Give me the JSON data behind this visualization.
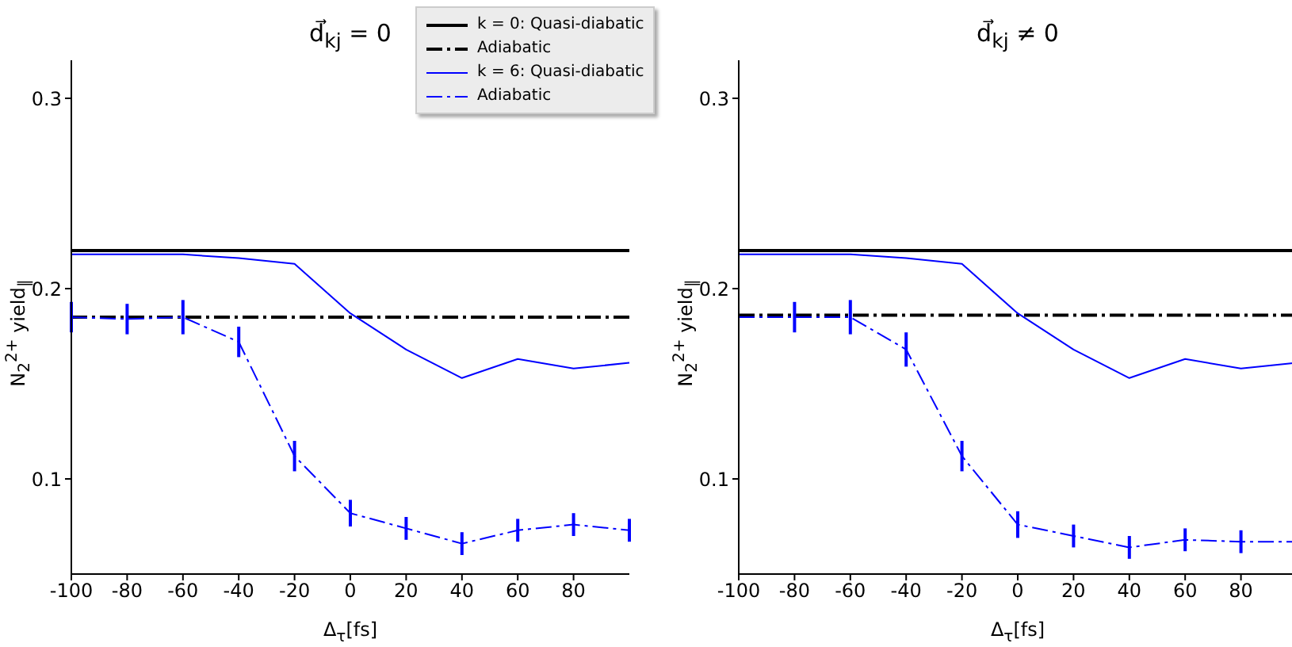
{
  "chart_data": [
    {
      "type": "line",
      "title": "d⃗$_{kj}$ = 0",
      "xlabel": "Δ$_{τ}$[fs]",
      "ylabel": "N$_{2}$$^{2+}$ yield$_{∥}$",
      "x": [
        -100,
        -80,
        -60,
        -40,
        -20,
        0,
        20,
        40,
        60,
        80,
        100
      ],
      "xlim": [
        -100,
        100
      ],
      "xticks": [
        -100,
        -80,
        -60,
        -40,
        -20,
        0,
        20,
        40,
        60,
        80
      ],
      "ylim": [
        0.05,
        0.32
      ],
      "yticks": [
        0.1,
        0.2,
        0.3
      ],
      "legend": "top right",
      "series": [
        {
          "name": "k = 0: Quasi-diabatic",
          "color": "#000000",
          "line_style": "solid",
          "values": [
            0.22,
            0.22,
            0.22,
            0.22,
            0.22,
            0.22,
            0.22,
            0.22,
            0.22,
            0.22,
            0.22
          ]
        },
        {
          "name": "Adiabatic",
          "color": "#000000",
          "line_style": "dashed",
          "values": [
            0.185,
            0.185,
            0.185,
            0.185,
            0.185,
            0.185,
            0.185,
            0.185,
            0.185,
            0.185,
            0.185
          ]
        },
        {
          "name": "k = 6: Quasi-diabatic",
          "color": "#0000ff",
          "line_style": "solid",
          "values": [
            0.218,
            0.218,
            0.218,
            0.216,
            0.213,
            0.187,
            0.168,
            0.153,
            0.163,
            0.158,
            0.161
          ]
        },
        {
          "name": "Adiabatic",
          "color": "#0000ff",
          "line_style": "dashed",
          "values": [
            0.185,
            0.184,
            0.185,
            0.172,
            0.112,
            0.082,
            0.074,
            0.066,
            0.073,
            0.076,
            0.073
          ],
          "errors": [
            0.008,
            0.008,
            0.009,
            0.008,
            0.008,
            0.007,
            0.006,
            0.006,
            0.006,
            0.006,
            0.006
          ]
        }
      ]
    },
    {
      "type": "line",
      "title": "d⃗$_{kj}$ ≠ 0",
      "xlabel": "Δ$_{τ}$[fs]",
      "ylabel": "N$_{2}$$^{2+}$ yield$_{∥}$",
      "x": [
        -100,
        -80,
        -60,
        -40,
        -20,
        0,
        20,
        40,
        60,
        80,
        100
      ],
      "xlim": [
        -100,
        100
      ],
      "xticks": [
        -100,
        -80,
        -60,
        -40,
        -20,
        0,
        20,
        40,
        60,
        80
      ],
      "ylim": [
        0.05,
        0.32
      ],
      "yticks": [
        0.1,
        0.2,
        0.3
      ],
      "series": [
        {
          "color": "#000000",
          "line_style": "solid",
          "values": [
            0.22,
            0.22,
            0.22,
            0.22,
            0.22,
            0.22,
            0.22,
            0.22,
            0.22,
            0.22,
            0.22
          ]
        },
        {
          "color": "#000000",
          "line_style": "dashed",
          "values": [
            0.186,
            0.186,
            0.186,
            0.186,
            0.186,
            0.186,
            0.186,
            0.186,
            0.186,
            0.186,
            0.186
          ]
        },
        {
          "color": "#0000ff",
          "line_style": "solid",
          "values": [
            0.218,
            0.218,
            0.218,
            0.216,
            0.213,
            0.187,
            0.168,
            0.153,
            0.163,
            0.158,
            0.161
          ]
        },
        {
          "color": "#0000ff",
          "line_style": "dashed",
          "values": [
            0.185,
            0.185,
            0.185,
            0.168,
            0.112,
            0.076,
            0.07,
            0.064,
            0.068,
            0.067,
            0.067
          ],
          "errors": [
            null,
            0.008,
            0.009,
            0.009,
            0.008,
            0.007,
            0.006,
            0.006,
            0.006,
            0.006,
            null
          ]
        }
      ]
    }
  ]
}
